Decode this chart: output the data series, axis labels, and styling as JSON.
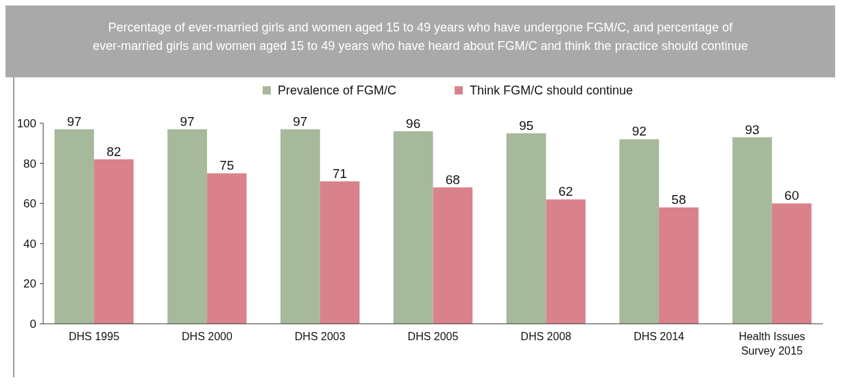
{
  "chart_data": {
    "type": "bar",
    "title": "Percentage of ever-married girls and women aged 15 to 49 years who have undergone FGM/C, and percentage of ever-married girls and women aged  15 to 49 years who have heard about FGM/C and think the practice should continue",
    "categories": [
      "DHS 1995",
      "DHS 2000",
      "DHS 2003",
      "DHS 2005",
      "DHS 2008",
      "DHS 2014",
      "Health Issues Survey 2015"
    ],
    "series": [
      {
        "name": "Prevalence of FGM/C",
        "color": "#a6b99b",
        "values": [
          97,
          97,
          97,
          96,
          95,
          92,
          93
        ]
      },
      {
        "name": "Think FGM/C should continue",
        "color": "#d9828b",
        "values": [
          82,
          75,
          71,
          68,
          62,
          58,
          60
        ]
      }
    ],
    "ylim": [
      0,
      100
    ],
    "yticks": [
      0,
      20,
      40,
      60,
      80,
      100
    ],
    "data_labels": true,
    "legend": "top",
    "grid": false
  }
}
